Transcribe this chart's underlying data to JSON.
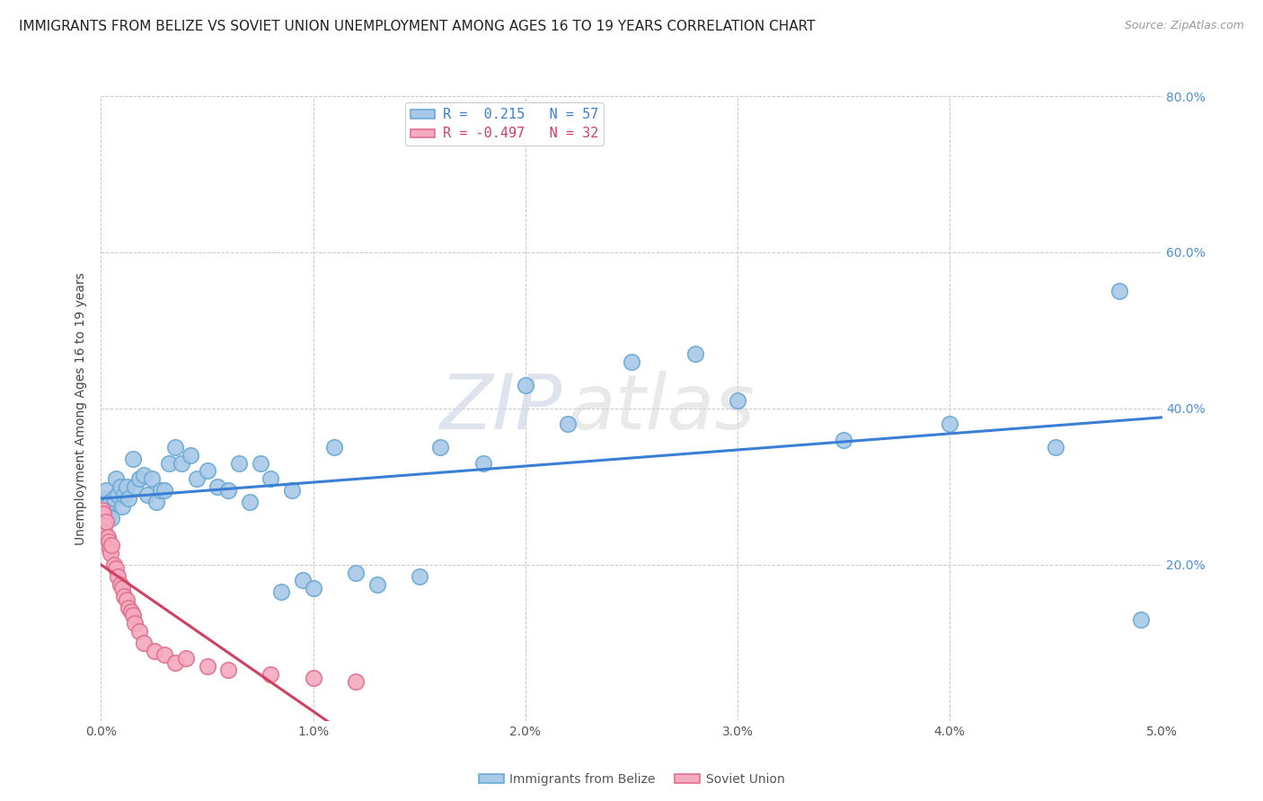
{
  "title": "IMMIGRANTS FROM BELIZE VS SOVIET UNION UNEMPLOYMENT AMONG AGES 16 TO 19 YEARS CORRELATION CHART",
  "source": "Source: ZipAtlas.com",
  "ylabel": "Unemployment Among Ages 16 to 19 years",
  "xlim": [
    0,
    0.05
  ],
  "ylim": [
    0,
    0.8
  ],
  "xticks": [
    0.0,
    0.01,
    0.02,
    0.03,
    0.04,
    0.05
  ],
  "yticks": [
    0.0,
    0.2,
    0.4,
    0.6,
    0.8
  ],
  "xticklabels": [
    "0.0%",
    "1.0%",
    "2.0%",
    "3.0%",
    "4.0%",
    "5.0%"
  ],
  "yticklabels": [
    "",
    "20.0%",
    "40.0%",
    "60.0%",
    "80.0%"
  ],
  "belize_color": "#a8c8e8",
  "soviet_color": "#f5aabf",
  "belize_edge": "#6aaad4",
  "soviet_edge": "#e07090",
  "trend_belize_color": "#3a7fd5",
  "trend_soviet_color": "#d04060",
  "R_belize": 0.215,
  "N_belize": 57,
  "R_soviet": -0.497,
  "N_soviet": 32,
  "belize_x": [
    0.0001,
    0.00015,
    0.0002,
    0.00025,
    0.0003,
    0.00035,
    0.0004,
    0.0005,
    0.0006,
    0.0007,
    0.0008,
    0.0009,
    0.001,
    0.0011,
    0.0012,
    0.0013,
    0.0015,
    0.0016,
    0.0018,
    0.002,
    0.0022,
    0.0024,
    0.0026,
    0.0028,
    0.003,
    0.0032,
    0.0035,
    0.0038,
    0.0042,
    0.0045,
    0.005,
    0.0055,
    0.006,
    0.0065,
    0.007,
    0.0075,
    0.008,
    0.0085,
    0.009,
    0.0095,
    0.01,
    0.011,
    0.012,
    0.013,
    0.015,
    0.016,
    0.018,
    0.02,
    0.022,
    0.025,
    0.028,
    0.03,
    0.035,
    0.04,
    0.045,
    0.048,
    0.049
  ],
  "belize_y": [
    0.285,
    0.275,
    0.265,
    0.295,
    0.26,
    0.27,
    0.28,
    0.26,
    0.285,
    0.31,
    0.29,
    0.3,
    0.275,
    0.29,
    0.3,
    0.285,
    0.335,
    0.3,
    0.31,
    0.315,
    0.29,
    0.31,
    0.28,
    0.295,
    0.295,
    0.33,
    0.35,
    0.33,
    0.34,
    0.31,
    0.32,
    0.3,
    0.295,
    0.33,
    0.28,
    0.33,
    0.31,
    0.165,
    0.295,
    0.18,
    0.17,
    0.35,
    0.19,
    0.175,
    0.185,
    0.35,
    0.33,
    0.43,
    0.38,
    0.46,
    0.47,
    0.41,
    0.36,
    0.38,
    0.35,
    0.55,
    0.13
  ],
  "soviet_x": [
    5e-05,
    0.0001,
    0.00015,
    0.0002,
    0.00025,
    0.0003,
    0.00035,
    0.0004,
    0.00045,
    0.0005,
    0.0006,
    0.0007,
    0.0008,
    0.0009,
    0.001,
    0.0011,
    0.0012,
    0.0013,
    0.0014,
    0.0015,
    0.0016,
    0.0018,
    0.002,
    0.0025,
    0.003,
    0.0035,
    0.004,
    0.005,
    0.006,
    0.008,
    0.01,
    0.012
  ],
  "soviet_y": [
    0.27,
    0.265,
    0.25,
    0.24,
    0.255,
    0.235,
    0.23,
    0.22,
    0.215,
    0.225,
    0.2,
    0.195,
    0.185,
    0.175,
    0.17,
    0.16,
    0.155,
    0.145,
    0.14,
    0.135,
    0.125,
    0.115,
    0.1,
    0.09,
    0.085,
    0.075,
    0.08,
    0.07,
    0.065,
    0.06,
    0.055,
    0.05
  ],
  "watermark_zip": "ZIP",
  "watermark_atlas": "atlas",
  "background_color": "#ffffff",
  "grid_color": "#c8c8c8",
  "title_fontsize": 11,
  "label_fontsize": 10,
  "tick_fontsize": 10,
  "right_ytick_color": "#4a90d9",
  "legend_R_label1": "R =  0.215   N = 57",
  "legend_R_label2": "R = -0.497   N = 32",
  "bottom_legend_label1": "Immigrants from Belize",
  "bottom_legend_label2": "Soviet Union"
}
